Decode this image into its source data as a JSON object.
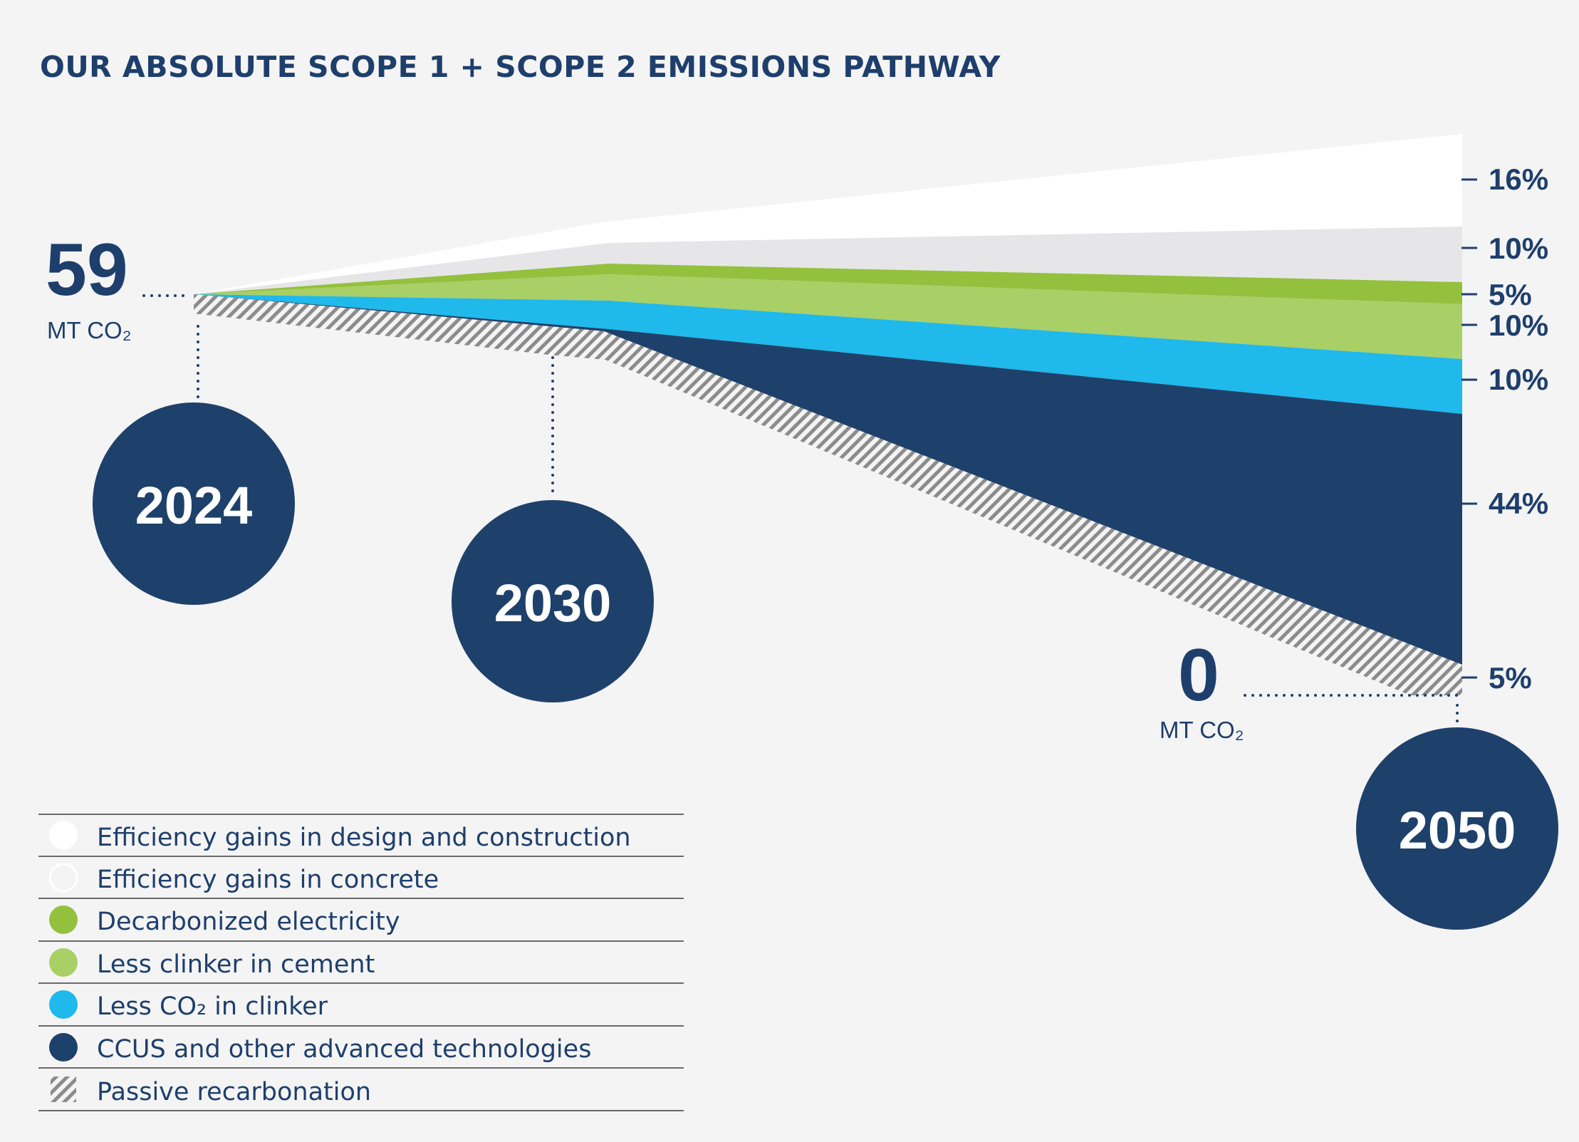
{
  "chart_data": {
    "type": "area",
    "title": "OUR ABSOLUTE SCOPE 1 + SCOPE 2 EMISSIONS PATHWAY",
    "x": [
      "2024",
      "2030",
      "2050"
    ],
    "start": {
      "value": "59",
      "unit": "MT CO₂"
    },
    "end": {
      "value": "0",
      "unit": "MT CO₂"
    },
    "series": [
      {
        "name": "Efficiency gains in design and construction",
        "share_2050": "16%",
        "share_2050_value": 16,
        "color": "#ffffff"
      },
      {
        "name": "Efficiency gains in concrete",
        "share_2050": "10%",
        "share_2050_value": 10,
        "color": "#e6e6e8"
      },
      {
        "name": "Decarbonized electricity",
        "share_2050": "5%",
        "share_2050_value": 5,
        "color": "#93c13e"
      },
      {
        "name": "Less clinker in cement",
        "share_2050": "10%",
        "share_2050_value": 10,
        "color": "#a9cf67"
      },
      {
        "name": "Less CO₂ in clinker",
        "share_2050": "10%",
        "share_2050_value": 10,
        "color": "#1fb9eb"
      },
      {
        "name": "CCUS and other advanced technologies",
        "share_2050": "44%",
        "share_2050_value": 44,
        "color": "#1e416b"
      },
      {
        "name": "Passive recarbonation",
        "share_2050": "5%",
        "share_2050_value": 5,
        "color": "hatch"
      }
    ]
  },
  "colors": {
    "navy": "#1e416b",
    "background": "#f4f4f4",
    "text": "#1f4068"
  }
}
